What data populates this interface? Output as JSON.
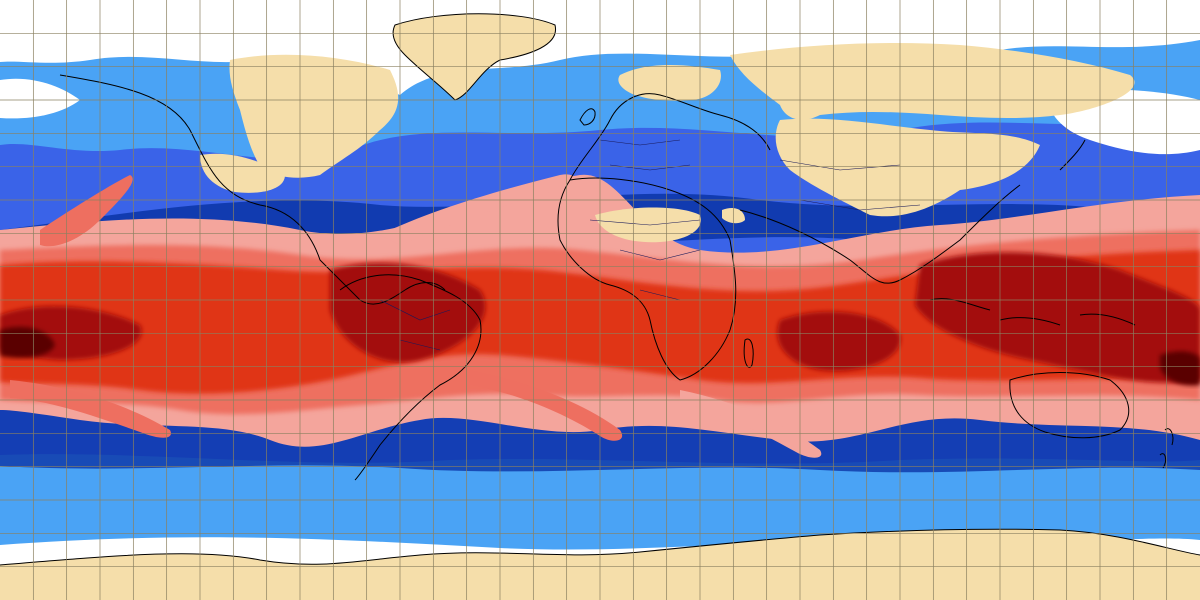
{
  "map": {
    "projection": "equirectangular",
    "longitude_range": [
      -180,
      180
    ],
    "latitude_range": [
      -90,
      90
    ],
    "graticule_step_deg": 10,
    "gridlines": true
  },
  "field": {
    "levels": [
      {
        "name": "land-mask",
        "color": "#f5deaa"
      },
      {
        "name": "very-dry",
        "color": "#ffffff"
      },
      {
        "name": "dry-light-blue",
        "color": "#4aa3f5"
      },
      {
        "name": "dry-blue",
        "color": "#3a63e8"
      },
      {
        "name": "dry-dark-blue",
        "color": "#0b34a6"
      },
      {
        "name": "moist-pink",
        "color": "#f4a59c"
      },
      {
        "name": "moist-salmon",
        "color": "#ee6f60"
      },
      {
        "name": "moist-red",
        "color": "#e03418"
      },
      {
        "name": "very-moist-dark-red",
        "color": "#a3100a"
      },
      {
        "name": "extreme-maroon",
        "color": "#5a0404"
      }
    ]
  },
  "colors": {
    "coastline": "#000000",
    "borders": "#1a1a5a",
    "graticule": "#8a8060"
  }
}
